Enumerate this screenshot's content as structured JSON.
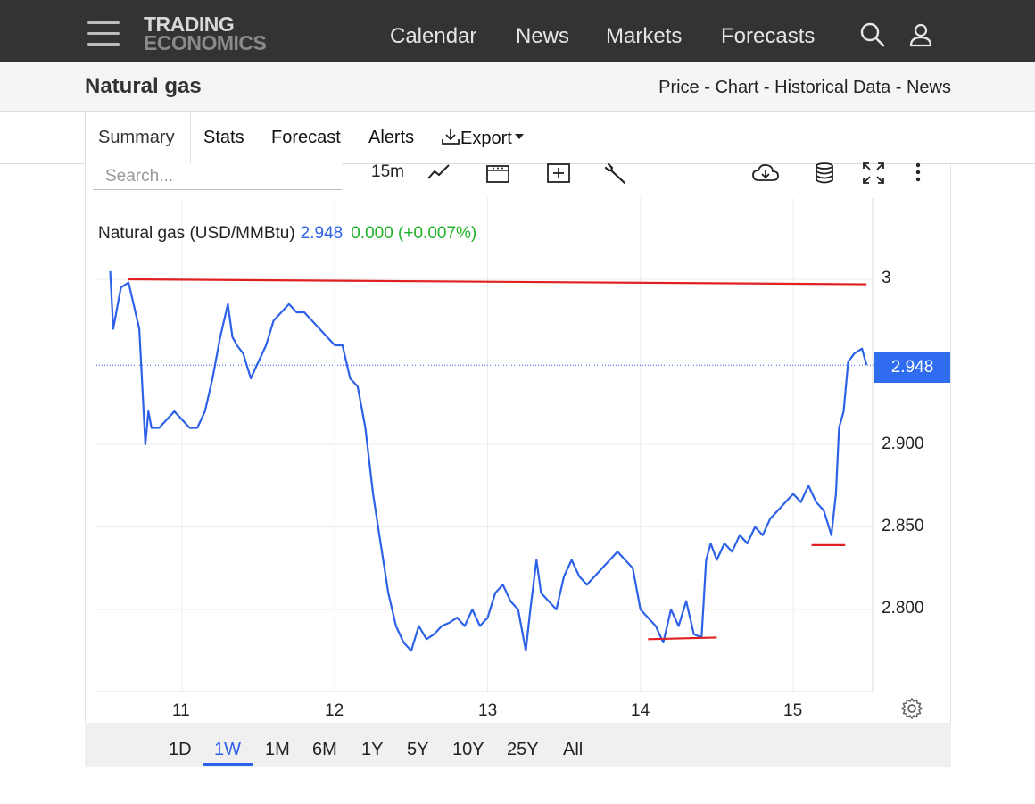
{
  "nav": {
    "logo_line1": "TRADING",
    "logo_line2": "ECONOMICS",
    "links": [
      "Calendar",
      "News",
      "Markets",
      "Forecasts"
    ]
  },
  "header": {
    "title": "Natural gas",
    "links": [
      "Price",
      "Chart",
      "Historical Data",
      "News"
    ],
    "separator": " - "
  },
  "tabs": {
    "active": "Summary",
    "items": [
      "Stats",
      "Forecast",
      "Alerts"
    ],
    "export": "Export"
  },
  "toolbar": {
    "search_placeholder": "Search...",
    "interval": "15m",
    "icons": [
      "line-chart-icon",
      "calendar-range-icon",
      "add-compare-icon",
      "wrench-icon",
      "cloud-download-icon",
      "database-icon",
      "fullscreen-icon",
      "more-icon"
    ]
  },
  "legend": {
    "name": "Natural gas (USD/MMBtu)",
    "price": "2.948",
    "change": "0.000 (+0.007%)"
  },
  "price_badge": "2.948",
  "range_buttons": [
    "1D",
    "1W",
    "1M",
    "6M",
    "1Y",
    "5Y",
    "10Y",
    "25Y",
    "All"
  ],
  "range_active": "1W",
  "colors": {
    "series": "#2d62e8",
    "annotation": "#e02020",
    "change_up": "#22b22b",
    "topbar": "#333333"
  },
  "chart_data": {
    "type": "line",
    "title": "Natural gas (USD/MMBtu)",
    "x_ticks": [
      "11",
      "12",
      "13",
      "14",
      "15"
    ],
    "y_ticks": [
      "3",
      "2.900",
      "2.850",
      "2.800"
    ],
    "ylim": [
      2.75,
      3.02
    ],
    "last_price": 2.948,
    "grid": true,
    "series": [
      {
        "name": "Natural gas",
        "x": [
          10.53,
          10.55,
          10.6,
          10.65,
          10.72,
          10.76,
          10.78,
          10.8,
          10.85,
          10.9,
          10.95,
          11.0,
          11.05,
          11.1,
          11.15,
          11.2,
          11.25,
          11.3,
          11.33,
          11.36,
          11.4,
          11.45,
          11.5,
          11.55,
          11.6,
          11.65,
          11.7,
          11.75,
          11.8,
          11.85,
          11.9,
          11.95,
          12.0,
          12.05,
          12.1,
          12.15,
          12.2,
          12.25,
          12.3,
          12.35,
          12.4,
          12.45,
          12.5,
          12.55,
          12.6,
          12.65,
          12.7,
          12.75,
          12.8,
          12.85,
          12.9,
          12.95,
          13.0,
          13.05,
          13.1,
          13.15,
          13.2,
          13.25,
          13.28,
          13.32,
          13.35,
          13.4,
          13.45,
          13.5,
          13.55,
          13.6,
          13.65,
          13.7,
          13.75,
          13.8,
          13.85,
          13.9,
          13.95,
          14.0,
          14.05,
          14.1,
          14.15,
          14.2,
          14.25,
          14.3,
          14.35,
          14.4,
          14.43,
          14.46,
          14.5,
          14.55,
          14.6,
          14.65,
          14.7,
          14.75,
          14.8,
          14.85,
          14.9,
          14.95,
          15.0,
          15.05,
          15.1,
          15.15,
          15.2,
          15.25,
          15.28,
          15.3,
          15.33,
          15.36,
          15.4,
          15.45,
          15.48
        ],
        "values": [
          3.005,
          2.97,
          2.995,
          2.998,
          2.97,
          2.9,
          2.92,
          2.91,
          2.91,
          2.915,
          2.92,
          2.915,
          2.91,
          2.91,
          2.92,
          2.94,
          2.965,
          2.985,
          2.965,
          2.96,
          2.955,
          2.94,
          2.95,
          2.96,
          2.975,
          2.98,
          2.985,
          2.98,
          2.98,
          2.975,
          2.97,
          2.965,
          2.96,
          2.96,
          2.94,
          2.935,
          2.91,
          2.87,
          2.84,
          2.81,
          2.79,
          2.78,
          2.775,
          2.79,
          2.782,
          2.785,
          2.79,
          2.792,
          2.795,
          2.79,
          2.8,
          2.79,
          2.795,
          2.81,
          2.815,
          2.805,
          2.8,
          2.775,
          2.8,
          2.83,
          2.81,
          2.805,
          2.8,
          2.82,
          2.83,
          2.82,
          2.815,
          2.82,
          2.825,
          2.83,
          2.835,
          2.83,
          2.825,
          2.8,
          2.795,
          2.79,
          2.78,
          2.8,
          2.79,
          2.805,
          2.785,
          2.783,
          2.83,
          2.84,
          2.83,
          2.84,
          2.835,
          2.845,
          2.84,
          2.85,
          2.845,
          2.855,
          2.86,
          2.865,
          2.87,
          2.865,
          2.875,
          2.865,
          2.86,
          2.845,
          2.87,
          2.91,
          2.92,
          2.95,
          2.955,
          2.958,
          2.948
        ]
      }
    ],
    "annotations": [
      {
        "type": "trendline",
        "x": [
          10.65,
          15.48
        ],
        "y": [
          3.0,
          2.997
        ]
      },
      {
        "type": "support",
        "x": [
          14.05,
          14.5
        ],
        "y": [
          2.782,
          2.783
        ]
      },
      {
        "type": "support",
        "x": [
          15.12,
          15.34
        ],
        "y": [
          2.839,
          2.839
        ]
      }
    ]
  }
}
